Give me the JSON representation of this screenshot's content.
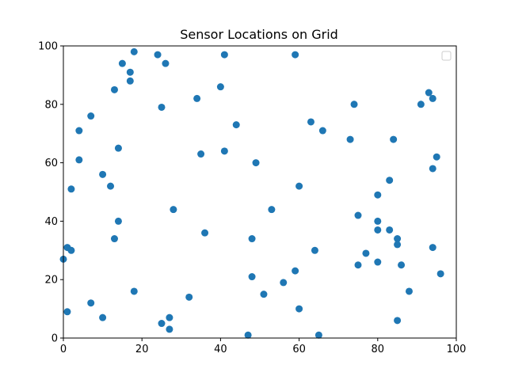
{
  "chart_data": {
    "type": "scatter",
    "title": "Sensor Locations on Grid",
    "xlabel": "",
    "ylabel": "",
    "xlim": [
      0,
      100
    ],
    "ylim": [
      0,
      100
    ],
    "xticks": [
      0,
      20,
      40,
      60,
      80,
      100
    ],
    "yticks": [
      0,
      20,
      40,
      60,
      80,
      100
    ],
    "grid": false,
    "legend": "top-right (empty)",
    "series": [
      {
        "color": "#1f77b4",
        "points": [
          [
            0,
            27
          ],
          [
            1,
            31
          ],
          [
            1,
            9
          ],
          [
            2,
            30
          ],
          [
            2,
            51
          ],
          [
            4,
            71
          ],
          [
            4,
            61
          ],
          [
            7,
            76
          ],
          [
            7,
            12
          ],
          [
            10,
            56
          ],
          [
            10,
            7
          ],
          [
            12,
            52
          ],
          [
            13,
            85
          ],
          [
            13,
            34
          ],
          [
            14,
            65
          ],
          [
            14,
            40
          ],
          [
            15,
            94
          ],
          [
            17,
            91
          ],
          [
            17,
            88
          ],
          [
            18,
            98
          ],
          [
            18,
            16
          ],
          [
            24,
            97
          ],
          [
            25,
            79
          ],
          [
            25,
            5
          ],
          [
            26,
            94
          ],
          [
            27,
            7
          ],
          [
            27,
            3
          ],
          [
            28,
            44
          ],
          [
            32,
            14
          ],
          [
            34,
            82
          ],
          [
            35,
            63
          ],
          [
            36,
            36
          ],
          [
            40,
            86
          ],
          [
            41,
            97
          ],
          [
            41,
            64
          ],
          [
            44,
            73
          ],
          [
            47,
            1
          ],
          [
            48,
            34
          ],
          [
            48,
            21
          ],
          [
            49,
            60
          ],
          [
            51,
            15
          ],
          [
            53,
            44
          ],
          [
            56,
            19
          ],
          [
            59,
            97
          ],
          [
            59,
            23
          ],
          [
            60,
            52
          ],
          [
            60,
            10
          ],
          [
            63,
            74
          ],
          [
            64,
            30
          ],
          [
            65,
            1
          ],
          [
            66,
            71
          ],
          [
            73,
            68
          ],
          [
            74,
            80
          ],
          [
            75,
            42
          ],
          [
            75,
            25
          ],
          [
            77,
            29
          ],
          [
            80,
            49
          ],
          [
            80,
            40
          ],
          [
            80,
            37
          ],
          [
            80,
            26
          ],
          [
            83,
            54
          ],
          [
            83,
            37
          ],
          [
            84,
            68
          ],
          [
            85,
            34
          ],
          [
            85,
            32
          ],
          [
            85,
            6
          ],
          [
            86,
            25
          ],
          [
            88,
            16
          ],
          [
            91,
            80
          ],
          [
            93,
            84
          ],
          [
            94,
            82
          ],
          [
            94,
            58
          ],
          [
            94,
            31
          ],
          [
            95,
            62
          ],
          [
            96,
            22
          ]
        ]
      }
    ]
  }
}
